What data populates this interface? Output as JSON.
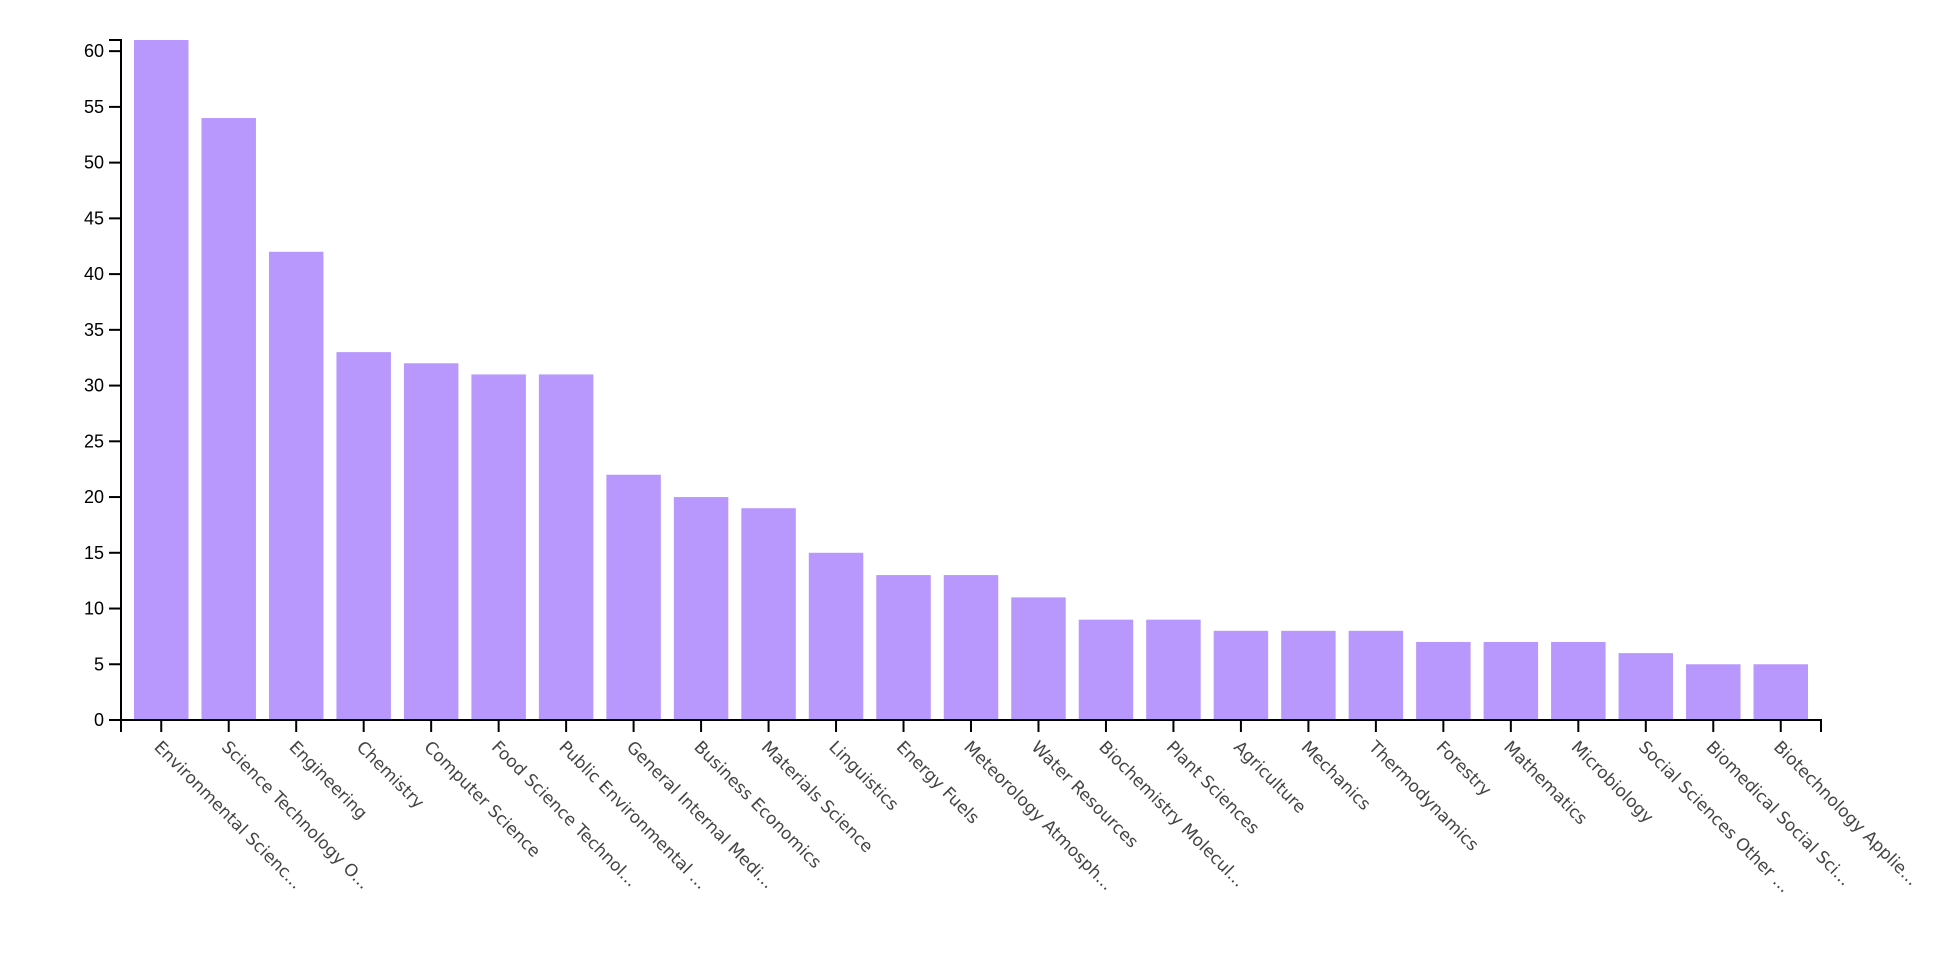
{
  "chart_data": {
    "type": "bar",
    "title": "",
    "xlabel": "",
    "ylabel": "",
    "ylim": [
      0,
      61
    ],
    "yticks": [
      0,
      5,
      10,
      15,
      20,
      25,
      30,
      35,
      40,
      45,
      50,
      55,
      60
    ],
    "grid": false,
    "bar_color": "#b898fc",
    "categories": [
      "Environmental Scienc...",
      "Science Technology O...",
      "Engineering",
      "Chemistry",
      "Computer Science",
      "Food Science Technol...",
      "Public Environmental ...",
      "General Internal Medi...",
      "Business Economics",
      "Materials Science",
      "Linguistics",
      "Energy Fuels",
      "Meteorology Atmosph...",
      "Water Resources",
      "Biochemistry Molecul...",
      "Plant Sciences",
      "Agriculture",
      "Mechanics",
      "Thermodynamics",
      "Forestry",
      "Mathematics",
      "Microbiology",
      "Social Sciences Other ...",
      "Biomedical Social Sci...",
      "Biotechnology Applie..."
    ],
    "values": [
      61,
      54,
      42,
      33,
      32,
      31,
      31,
      22,
      20,
      19,
      15,
      13,
      13,
      11,
      9,
      9,
      8,
      8,
      8,
      7,
      7,
      7,
      6,
      5,
      5
    ]
  }
}
